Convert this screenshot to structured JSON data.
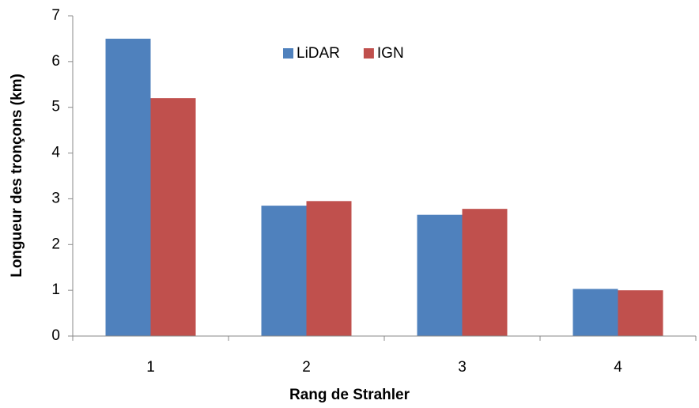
{
  "chart_data": {
    "type": "bar",
    "x_label": "Rang de Strahler",
    "y_label": "Longueur des tronçons (km)",
    "categories": [
      "1",
      "2",
      "3",
      "4"
    ],
    "series": [
      {
        "name": "LiDAR",
        "color": "#4f81bd",
        "values": [
          6.5,
          2.85,
          2.65,
          1.03
        ]
      },
      {
        "name": "IGN",
        "color": "#c0504d",
        "values": [
          5.2,
          2.95,
          2.78,
          1.0
        ]
      }
    ],
    "ylim": [
      0,
      7
    ],
    "yticks": [
      0,
      1,
      2,
      3,
      4,
      5,
      6,
      7
    ],
    "grid": false,
    "legend": "top"
  }
}
